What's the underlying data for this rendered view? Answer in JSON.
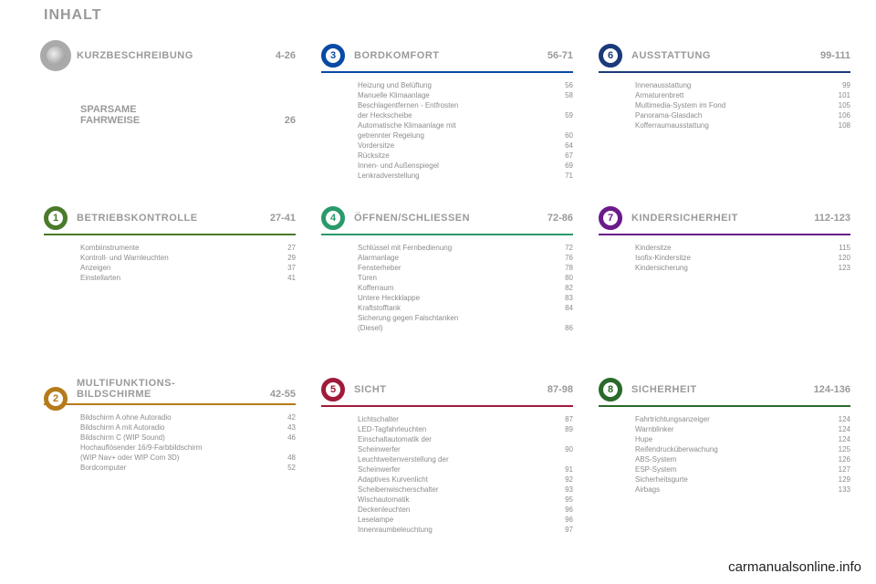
{
  "page": {
    "title": "INHALT",
    "watermark": "carmanualsonline.info"
  },
  "colors": {
    "s1": "#6b6b6b",
    "s2": "#4a7a2a",
    "s3": "#b57a1a",
    "s4": "#0a4aa5",
    "s5": "#2a9a6a",
    "s6": "#a01a3a",
    "s7": "#1a3a7a",
    "s8": "#6a1a8a",
    "s9": "#2a6a2a"
  },
  "sections": {
    "s1": {
      "title": "KURZBESCHREIBUNG",
      "range": "4-26",
      "number": "",
      "sparse": {
        "line1": "SPARSAME",
        "line2": "FAHRWEISE",
        "page": "26"
      }
    },
    "s2": {
      "title": "BETRIEBSKONTROLLE",
      "range": "27-41",
      "number": "1",
      "items": [
        {
          "label": "Kombiinstrumente",
          "page": "27"
        },
        {
          "label": "Kontroll- und Warnleuchten",
          "page": "29"
        },
        {
          "label": "Anzeigen",
          "page": "37"
        },
        {
          "label": "Einstellarten",
          "page": "41"
        }
      ]
    },
    "s3": {
      "title": "MULTIFUNKTIONS-",
      "title2": "BILDSCHIRME",
      "range": "42-55",
      "number": "2",
      "items": [
        {
          "label": "Bildschirm A ohne Autoradio",
          "page": "42"
        },
        {
          "label": "Bildschirm A mit Autoradio",
          "page": "43"
        },
        {
          "label": "Bildschirm C (WIP Sound)",
          "page": "46"
        },
        {
          "label": "Hochauflösender 16/9-Farbbildschirm",
          "page": ""
        },
        {
          "label": " (WIP Nav+ oder WIP Com 3D)",
          "page": "48"
        },
        {
          "label": "Bordcomputer",
          "page": "52"
        }
      ]
    },
    "s4": {
      "title": "BORDKOMFORT",
      "range": "56-71",
      "number": "3",
      "items": [
        {
          "label": "Heizung und Belüftung",
          "page": "56"
        },
        {
          "label": "Manuelle Klimaanlage",
          "page": "58"
        },
        {
          "label": "Beschlagentfernen - Entfrosten",
          "page": ""
        },
        {
          "label": " der Heckscheibe",
          "page": "59"
        },
        {
          "label": "Automatische Klimaanlage mit",
          "page": ""
        },
        {
          "label": " getrennter Regelung",
          "page": "60"
        },
        {
          "label": "Vordersitze",
          "page": "64"
        },
        {
          "label": "Rücksitze",
          "page": "67"
        },
        {
          "label": "Innen- und Außenspiegel",
          "page": "69"
        },
        {
          "label": "Lenkradverstellung",
          "page": "71"
        }
      ]
    },
    "s5": {
      "title": "ÖFFNEN/SCHLIESSEN",
      "range": "72-86",
      "number": "4",
      "items": [
        {
          "label": "Schlüssel mit Fernbedienung",
          "page": "72"
        },
        {
          "label": "Alarmanlage",
          "page": "76"
        },
        {
          "label": "Fensterheber",
          "page": "78"
        },
        {
          "label": "Türen",
          "page": "80"
        },
        {
          "label": "Kofferraum",
          "page": "82"
        },
        {
          "label": "Untere Heckklappe",
          "page": "83"
        },
        {
          "label": "Kraftstofftank",
          "page": "84"
        },
        {
          "label": "Sicherung gegen Falschtanken",
          "page": ""
        },
        {
          "label": " (Diesel)",
          "page": "86"
        }
      ]
    },
    "s6": {
      "title": "SICHT",
      "range": "87-98",
      "number": "5",
      "items": [
        {
          "label": "Lichtschalter",
          "page": "87"
        },
        {
          "label": "LED-Tagfahrleuchten",
          "page": "89"
        },
        {
          "label": "Einschaltautomatik der",
          "page": ""
        },
        {
          "label": " Scheinwerfer",
          "page": "90"
        },
        {
          "label": "Leuchtweitenverstellung der",
          "page": ""
        },
        {
          "label": " Scheinwerfer",
          "page": "91"
        },
        {
          "label": "Adaptives Kurvenlicht",
          "page": "92"
        },
        {
          "label": "Scheibenwischerschalter",
          "page": "93"
        },
        {
          "label": "Wischautomatik",
          "page": "95"
        },
        {
          "label": "Deckenleuchten",
          "page": "96"
        },
        {
          "label": "Leselampe",
          "page": "96"
        },
        {
          "label": "Innenraumbeleuchtung",
          "page": "97"
        }
      ]
    },
    "s7": {
      "title": "AUSSTATTUNG",
      "range": "99-111",
      "number": "6",
      "items": [
        {
          "label": "Innenausstattung",
          "page": "99"
        },
        {
          "label": "Armaturenbrett",
          "page": "101"
        },
        {
          "label": "Multimedia-System im Fond",
          "page": "105"
        },
        {
          "label": "Panorama-Glasdach",
          "page": "106"
        },
        {
          "label": "Kofferraumausstattung",
          "page": "108"
        }
      ]
    },
    "s8": {
      "title": "KINDERSICHERHEIT",
      "range": "112-123",
      "number": "7",
      "items": [
        {
          "label": "Kindersitze",
          "page": "115"
        },
        {
          "label": "Isofix-Kindersitze",
          "page": "120"
        },
        {
          "label": "Kindersicherung",
          "page": "123"
        }
      ]
    },
    "s9": {
      "title": "SICHERHEIT",
      "range": "124-136",
      "number": "8",
      "items": [
        {
          "label": "Fahrtrichtungsanzeiger",
          "page": "124"
        },
        {
          "label": "Warnblinker",
          "page": "124"
        },
        {
          "label": "Hupe",
          "page": "124"
        },
        {
          "label": "Reifendrucküberwachung",
          "page": "125"
        },
        {
          "label": "ABS-System",
          "page": "126"
        },
        {
          "label": "ESP-System",
          "page": "127"
        },
        {
          "label": "Sicherheitsgurte",
          "page": "129"
        },
        {
          "label": "Airbags",
          "page": "133"
        }
      ]
    }
  }
}
